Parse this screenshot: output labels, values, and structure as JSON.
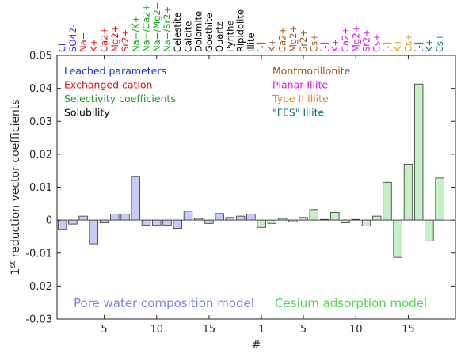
{
  "colors": {
    "pore_bar_fill": "#c8cbf5",
    "cs_bar_fill": "#c6efc6",
    "bar_edge": "#333333",
    "axis": "#262626",
    "leached": "#1f2fd1",
    "exchanged": "#e01010",
    "selectivity": "#10a510",
    "solubility": "#000000",
    "montmorillonite": "#a0521a",
    "planar_illite": "#e010e0",
    "type2_illite": "#f08a10",
    "fes_illite": "#10707a",
    "pore_model_text": "#7b83e8",
    "cs_model_text": "#4fd64f"
  },
  "legend_left": [
    {
      "text": "Leached parameters",
      "color_key": "leached"
    },
    {
      "text": "Exchanged cation",
      "color_key": "exchanged"
    },
    {
      "text": "Selectivity coefficients",
      "color_key": "selectivity"
    },
    {
      "text": "Solubility",
      "color_key": "solubility"
    }
  ],
  "legend_right": [
    {
      "text": "Montmorillonite",
      "color_key": "montmorillonite"
    },
    {
      "text": "Planar Illite",
      "color_key": "planar_illite"
    },
    {
      "text": "Type II Illite",
      "color_key": "type2_illite"
    },
    {
      "text": "\"FES\" Illite",
      "color_key": "fes_illite"
    }
  ],
  "model_labels": {
    "pore": "Pore water composition model",
    "cs": "Cesium adsorption model"
  },
  "chart_data": {
    "type": "bar",
    "xlabel": "#",
    "ylabel_main": "1",
    "ylabel_sup": "st",
    "ylabel_rest": " reduction vector coefficients",
    "ylim": [
      -0.03,
      0.05
    ],
    "yticks": [
      -0.03,
      -0.02,
      -0.01,
      0,
      0.01,
      0.02,
      0.03,
      0.04,
      0.05
    ],
    "ytick_labels": [
      "-0.03",
      "-0.02",
      "-0.01",
      "0",
      "0.01",
      "0.02",
      "0.03",
      "0.04",
      "0.05"
    ],
    "grid": false,
    "series": [
      {
        "name": "Pore water composition model",
        "color_key": "pore_bar_fill",
        "bars": [
          {
            "x": 1,
            "label": "Cl-",
            "color_key": "leached",
            "value": -0.0028
          },
          {
            "x": 2,
            "label": "SO42-",
            "color_key": "leached",
            "value": -0.0012
          },
          {
            "x": 3,
            "label": "Na+",
            "color_key": "exchanged",
            "value": 0.0012
          },
          {
            "x": 4,
            "label": "K+",
            "color_key": "exchanged",
            "value": -0.0072
          },
          {
            "x": 5,
            "label": "Ca2+",
            "color_key": "exchanged",
            "value": -0.0008
          },
          {
            "x": 6,
            "label": "Mg2+",
            "color_key": "exchanged",
            "value": 0.0018
          },
          {
            "x": 7,
            "label": "Sr2+",
            "color_key": "exchanged",
            "value": 0.0018
          },
          {
            "x": 8,
            "label": "Na+/K+",
            "color_key": "selectivity",
            "value": 0.0133
          },
          {
            "x": 9,
            "label": "Na+/Ca2+",
            "color_key": "selectivity",
            "value": -0.0015
          },
          {
            "x": 10,
            "label": "Na+/Mg2+",
            "color_key": "selectivity",
            "value": -0.0015
          },
          {
            "x": 11,
            "label": "Na+/Sr2+",
            "color_key": "selectivity",
            "value": -0.0015
          },
          {
            "x": 12,
            "label": "Celestite",
            "color_key": "solubility",
            "value": -0.0025
          },
          {
            "x": 13,
            "label": "Calcite",
            "color_key": "solubility",
            "value": 0.0027
          },
          {
            "x": 14,
            "label": "Dolomite",
            "color_key": "solubility",
            "value": 0.0005
          },
          {
            "x": 15,
            "label": "Goethite",
            "color_key": "solubility",
            "value": -0.001
          },
          {
            "x": 16,
            "label": "Quartz",
            "color_key": "solubility",
            "value": 0.002
          },
          {
            "x": 17,
            "label": "Pyrithe",
            "color_key": "solubility",
            "value": 0.0008
          },
          {
            "x": 18,
            "label": "Ripidolite",
            "color_key": "solubility",
            "value": 0.0012
          },
          {
            "x": 19,
            "label": "Illite",
            "color_key": "solubility",
            "value": 0.0018
          }
        ]
      },
      {
        "name": "Cesium adsorption model",
        "color_key": "cs_bar_fill",
        "bars": [
          {
            "x": 1,
            "label": "[-]",
            "color_key": "montmorillonite",
            "value": -0.0022
          },
          {
            "x": 2,
            "label": "K+",
            "color_key": "montmorillonite",
            "value": -0.001
          },
          {
            "x": 3,
            "label": "Ca2+",
            "color_key": "montmorillonite",
            "value": 0.0005
          },
          {
            "x": 4,
            "label": "Mg2+",
            "color_key": "montmorillonite",
            "value": -0.0005
          },
          {
            "x": 5,
            "label": "Sr2+",
            "color_key": "montmorillonite",
            "value": 0.0008
          },
          {
            "x": 6,
            "label": "Cs+",
            "color_key": "montmorillonite",
            "value": 0.0032
          },
          {
            "x": 7,
            "label": "[-]",
            "color_key": "planar_illite",
            "value": 0.0002
          },
          {
            "x": 8,
            "label": "K+",
            "color_key": "planar_illite",
            "value": 0.0023
          },
          {
            "x": 9,
            "label": "Ca2+",
            "color_key": "planar_illite",
            "value": -0.0008
          },
          {
            "x": 10,
            "label": "Mg2+",
            "color_key": "planar_illite",
            "value": 0.0002
          },
          {
            "x": 11,
            "label": "Sr2+",
            "color_key": "planar_illite",
            "value": -0.0018
          },
          {
            "x": 12,
            "label": "Cs+",
            "color_key": "planar_illite",
            "value": 0.0012
          },
          {
            "x": 13,
            "label": "[-]",
            "color_key": "type2_illite",
            "value": 0.0115
          },
          {
            "x": 14,
            "label": "K+",
            "color_key": "type2_illite",
            "value": -0.0113
          },
          {
            "x": 15,
            "label": "Cs+",
            "color_key": "type2_illite",
            "value": 0.017
          },
          {
            "x": 16,
            "label": "[-]",
            "color_key": "fes_illite",
            "value": 0.0413
          },
          {
            "x": 17,
            "label": "K+",
            "color_key": "fes_illite",
            "value": -0.0063
          },
          {
            "x": 18,
            "label": "Cs+",
            "color_key": "fes_illite",
            "value": 0.0128
          }
        ]
      }
    ],
    "xticks": [
      {
        "label": "5",
        "series_index": 0,
        "bar_x": 5
      },
      {
        "label": "10",
        "series_index": 0,
        "bar_x": 10
      },
      {
        "label": "15",
        "series_index": 0,
        "bar_x": 15
      },
      {
        "label": "1",
        "series_index": 1,
        "bar_x": 1
      },
      {
        "label": "5",
        "series_index": 1,
        "bar_x": 5
      },
      {
        "label": "10",
        "series_index": 1,
        "bar_x": 10
      },
      {
        "label": "15",
        "series_index": 1,
        "bar_x": 15
      }
    ]
  }
}
